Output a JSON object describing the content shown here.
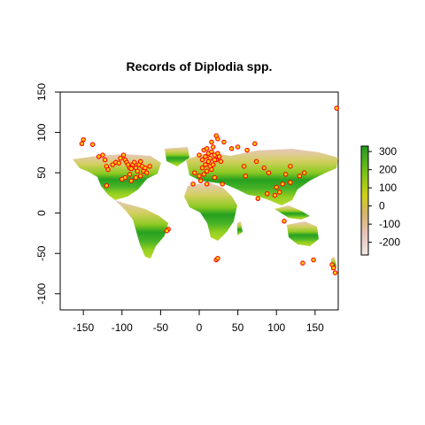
{
  "chart_data": {
    "type": "scatter",
    "title": "Records of Diplodia spp.",
    "xlabel": "",
    "ylabel": "",
    "xlim": [
      -180,
      180
    ],
    "ylim": [
      -120,
      150
    ],
    "xticks": [
      -150,
      -100,
      -50,
      0,
      50,
      100,
      150
    ],
    "yticks": [
      -100,
      -50,
      0,
      50,
      100,
      150
    ],
    "grid": false,
    "legend": {
      "placement": "right",
      "type": "colorbar",
      "ticks": [
        300,
        200,
        100,
        0,
        -100,
        -200
      ],
      "range": [
        -270,
        330
      ],
      "colors": [
        "#1f9a1f",
        "#7cc417",
        "#cfcf18",
        "#d6b46b",
        "#e6c2b6",
        "#f2e7e6"
      ]
    },
    "background_raster": {
      "description": "",
      "land_color_low": "#f2e7e6",
      "land_color_high": "#1f9a1f"
    },
    "marker": {
      "stroke": "#ff0000",
      "fill": "#ffd000",
      "shape": "circle-open"
    },
    "points": [
      [
        -152,
        86
      ],
      [
        -150,
        91
      ],
      [
        -138,
        85
      ],
      [
        -130,
        70
      ],
      [
        -125,
        72
      ],
      [
        -122,
        66
      ],
      [
        -120,
        58
      ],
      [
        -118,
        54
      ],
      [
        -112,
        60
      ],
      [
        -108,
        63
      ],
      [
        -104,
        62
      ],
      [
        -102,
        68
      ],
      [
        -98,
        72
      ],
      [
        -96,
        66
      ],
      [
        -94,
        63
      ],
      [
        -92,
        60
      ],
      [
        -90,
        56
      ],
      [
        -88,
        55
      ],
      [
        -86,
        60
      ],
      [
        -84,
        63
      ],
      [
        -82,
        56
      ],
      [
        -80,
        52
      ],
      [
        -78,
        60
      ],
      [
        -76,
        64
      ],
      [
        -74,
        58
      ],
      [
        -72,
        52
      ],
      [
        -70,
        56
      ],
      [
        -90,
        48
      ],
      [
        -96,
        44
      ],
      [
        -100,
        42
      ],
      [
        -88,
        40
      ],
      [
        -82,
        44
      ],
      [
        -76,
        46
      ],
      [
        -68,
        50
      ],
      [
        -64,
        58
      ],
      [
        -120,
        34
      ],
      [
        -40,
        -20
      ],
      [
        -42,
        -22
      ],
      [
        0,
        72
      ],
      [
        4,
        66
      ],
      [
        6,
        78
      ],
      [
        8,
        70
      ],
      [
        10,
        80
      ],
      [
        12,
        74
      ],
      [
        14,
        68
      ],
      [
        16,
        76
      ],
      [
        18,
        82
      ],
      [
        20,
        72
      ],
      [
        22,
        66
      ],
      [
        12,
        64
      ],
      [
        8,
        60
      ],
      [
        4,
        56
      ],
      [
        14,
        58
      ],
      [
        18,
        60
      ],
      [
        20,
        66
      ],
      [
        24,
        74
      ],
      [
        26,
        70
      ],
      [
        28,
        64
      ],
      [
        10,
        52
      ],
      [
        16,
        54
      ],
      [
        6,
        48
      ],
      [
        0,
        46
      ],
      [
        -6,
        50
      ],
      [
        2,
        40
      ],
      [
        10,
        36
      ],
      [
        20,
        44
      ],
      [
        24,
        92
      ],
      [
        22,
        96
      ],
      [
        16,
        88
      ],
      [
        32,
        88
      ],
      [
        42,
        80
      ],
      [
        50,
        82
      ],
      [
        62,
        78
      ],
      [
        72,
        86
      ],
      [
        74,
        64
      ],
      [
        58,
        58
      ],
      [
        84,
        56
      ],
      [
        90,
        50
      ],
      [
        112,
        48
      ],
      [
        118,
        58
      ],
      [
        130,
        46
      ],
      [
        136,
        50
      ],
      [
        60,
        46
      ],
      [
        100,
        32
      ],
      [
        108,
        36
      ],
      [
        118,
        38
      ],
      [
        104,
        26
      ],
      [
        98,
        22
      ],
      [
        76,
        18
      ],
      [
        88,
        24
      ],
      [
        110,
        -10
      ],
      [
        134,
        -62
      ],
      [
        148,
        -58
      ],
      [
        172,
        -64
      ],
      [
        174,
        -68
      ],
      [
        176,
        -74
      ],
      [
        178,
        130
      ],
      [
        22,
        -58
      ],
      [
        24,
        -56
      ],
      [
        -8,
        36
      ],
      [
        30,
        36
      ]
    ]
  }
}
